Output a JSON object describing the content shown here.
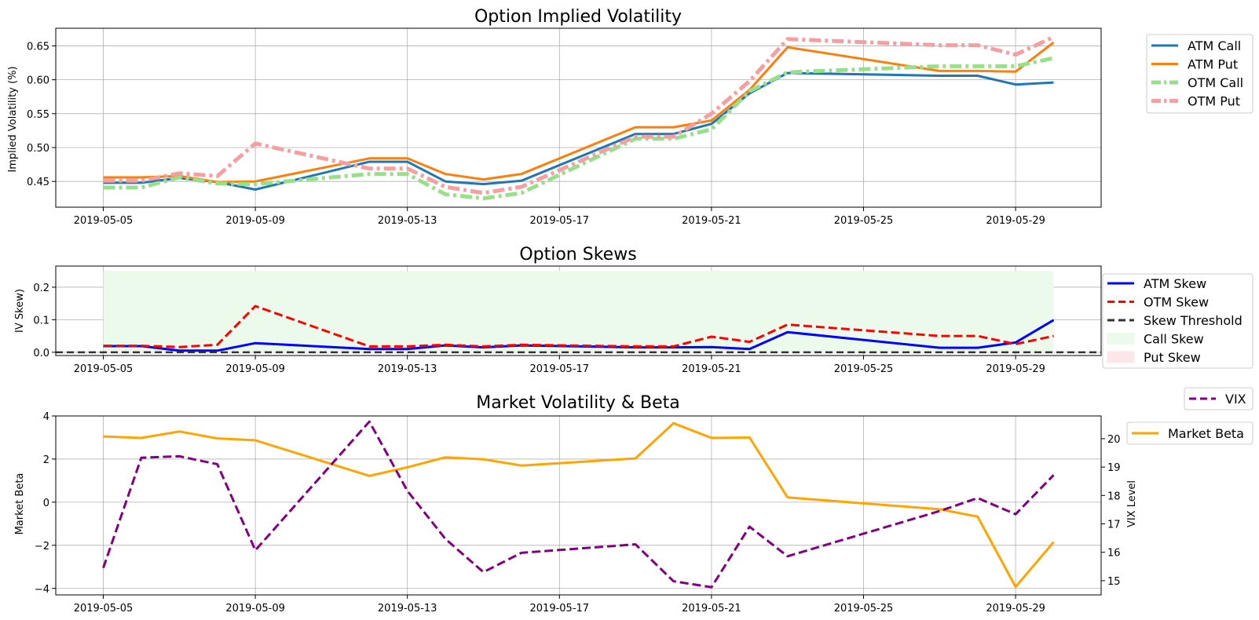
{
  "chart_data": [
    {
      "type": "line",
      "title": "Option Implied Volatility",
      "xlabel": "",
      "ylabel": "Implied Volatility (%)",
      "ylim": [
        0.412,
        0.676
      ],
      "yticks": [
        "0.45",
        "0.50",
        "0.55",
        "0.60",
        "0.65"
      ],
      "xticks": [
        "2019-05-05",
        "2019-05-09",
        "2019-05-13",
        "2019-05-17",
        "2019-05-21",
        "2019-05-25",
        "2019-05-29"
      ],
      "grid": true,
      "legend": "outside-top-right",
      "x": [
        "2019-05-05",
        "2019-05-06",
        "2019-05-07",
        "2019-05-08",
        "2019-05-09",
        "2019-05-12",
        "2019-05-13",
        "2019-05-14",
        "2019-05-15",
        "2019-05-16",
        "2019-05-19",
        "2019-05-20",
        "2019-05-21",
        "2019-05-22",
        "2019-05-23",
        "2019-05-27",
        "2019-05-28",
        "2019-05-29",
        "2019-05-30"
      ],
      "series": [
        {
          "name": "ATM Call",
          "color": "#1f77b4",
          "style": "solid",
          "values": [
            0.448,
            0.448,
            0.455,
            0.449,
            0.438,
            0.479,
            0.479,
            0.45,
            0.446,
            0.451,
            0.52,
            0.52,
            0.535,
            0.58,
            0.61,
            0.606,
            0.606,
            0.593,
            0.596
          ]
        },
        {
          "name": "ATM Put",
          "color": "#ff7f0e",
          "style": "solid",
          "values": [
            0.456,
            0.456,
            0.458,
            0.449,
            0.45,
            0.484,
            0.484,
            0.461,
            0.453,
            0.461,
            0.53,
            0.53,
            0.54,
            0.585,
            0.648,
            0.613,
            0.613,
            0.612,
            0.655
          ]
        },
        {
          "name": "OTM Call",
          "color": "#98df8a",
          "style": "dashdot",
          "values": [
            0.441,
            0.441,
            0.456,
            0.447,
            0.446,
            0.461,
            0.461,
            0.431,
            0.425,
            0.433,
            0.513,
            0.513,
            0.527,
            0.583,
            0.611,
            0.62,
            0.62,
            0.62,
            0.632
          ]
        },
        {
          "name": "OTM Put",
          "color": "#f4a0a2",
          "style": "dashdot",
          "values": [
            0.451,
            0.451,
            0.462,
            0.458,
            0.506,
            0.469,
            0.469,
            0.442,
            0.433,
            0.442,
            0.516,
            0.516,
            0.55,
            0.598,
            0.66,
            0.651,
            0.651,
            0.637,
            0.663
          ]
        }
      ]
    },
    {
      "type": "line",
      "title": "Option Skews",
      "xlabel": "",
      "ylabel": "IV Skew)",
      "ylim": [
        -0.01,
        0.265
      ],
      "yticks": [
        "0.0",
        "0.1",
        "0.2"
      ],
      "xticks": [
        "2019-05-05",
        "2019-05-09",
        "2019-05-13",
        "2019-05-17",
        "2019-05-21",
        "2019-05-25",
        "2019-05-29"
      ],
      "grid": true,
      "legend": "outside-right",
      "x": [
        "2019-05-05",
        "2019-05-06",
        "2019-05-07",
        "2019-05-08",
        "2019-05-09",
        "2019-05-12",
        "2019-05-13",
        "2019-05-14",
        "2019-05-15",
        "2019-05-16",
        "2019-05-19",
        "2019-05-20",
        "2019-05-21",
        "2019-05-22",
        "2019-05-23",
        "2019-05-27",
        "2019-05-28",
        "2019-05-29",
        "2019-05-30"
      ],
      "series": [
        {
          "name": "ATM Skew",
          "color": "#0000ff",
          "style": "solid",
          "values": [
            0.019,
            0.019,
            0.005,
            0.005,
            0.028,
            0.01,
            0.01,
            0.021,
            0.015,
            0.021,
            0.015,
            0.015,
            0.016,
            0.01,
            0.062,
            0.014,
            0.014,
            0.03,
            0.099
          ]
        },
        {
          "name": "OTM Skew",
          "color": "#ff0000",
          "style": "dashed",
          "values": [
            0.02,
            0.02,
            0.016,
            0.023,
            0.142,
            0.018,
            0.018,
            0.023,
            0.018,
            0.023,
            0.018,
            0.018,
            0.048,
            0.032,
            0.085,
            0.05,
            0.05,
            0.025,
            0.05
          ]
        },
        {
          "name": "Skew Threshold",
          "color": "#333333",
          "style": "dashed",
          "value": 0.0
        },
        {
          "name": "Call Skew",
          "color": "#ebfaeb",
          "style": "fill",
          "range": [
            0.0,
            0.25
          ]
        },
        {
          "name": "Put Skew",
          "color": "#fbe7e7",
          "style": "fill",
          "range": [
            0.0,
            0.0
          ]
        }
      ]
    },
    {
      "type": "line",
      "title": "Market Volatility & Beta",
      "xlabel": "",
      "ylabel": "Market Beta",
      "ylabel_right": "VIX Level",
      "ylim": [
        -4.3,
        4.0
      ],
      "ylim_right": [
        14.5,
        20.8
      ],
      "yticks": [
        "−4",
        "−2",
        "0",
        "2",
        "4"
      ],
      "yticks_right": [
        "15",
        "16",
        "17",
        "18",
        "19",
        "20"
      ],
      "xticks": [
        "2019-05-05",
        "2019-05-09",
        "2019-05-13",
        "2019-05-17",
        "2019-05-21",
        "2019-05-25",
        "2019-05-29"
      ],
      "grid": true,
      "legend": "outside-right",
      "x": [
        "2019-05-05",
        "2019-05-06",
        "2019-05-07",
        "2019-05-08",
        "2019-05-09",
        "2019-05-12",
        "2019-05-13",
        "2019-05-14",
        "2019-05-15",
        "2019-05-16",
        "2019-05-19",
        "2019-05-20",
        "2019-05-21",
        "2019-05-22",
        "2019-05-23",
        "2019-05-27",
        "2019-05-28",
        "2019-05-29",
        "2019-05-30"
      ],
      "series": [
        {
          "name": "Market Beta",
          "color": "#ffa500",
          "style": "solid",
          "axis": "left",
          "values": [
            3.05,
            2.98,
            3.28,
            2.96,
            2.87,
            1.22,
            1.62,
            2.08,
            1.99,
            1.7,
            2.03,
            3.66,
            2.98,
            3.0,
            0.22,
            -0.33,
            -0.67,
            -3.93,
            -1.85
          ]
        },
        {
          "name": "VIX",
          "color": "#800080",
          "style": "dashed",
          "axis": "right",
          "values": [
            15.45,
            19.33,
            19.38,
            19.1,
            16.07,
            20.6,
            18.16,
            16.47,
            15.3,
            15.98,
            16.28,
            14.98,
            14.77,
            16.9,
            15.86,
            17.45,
            17.91,
            17.34,
            18.72
          ]
        }
      ]
    }
  ]
}
